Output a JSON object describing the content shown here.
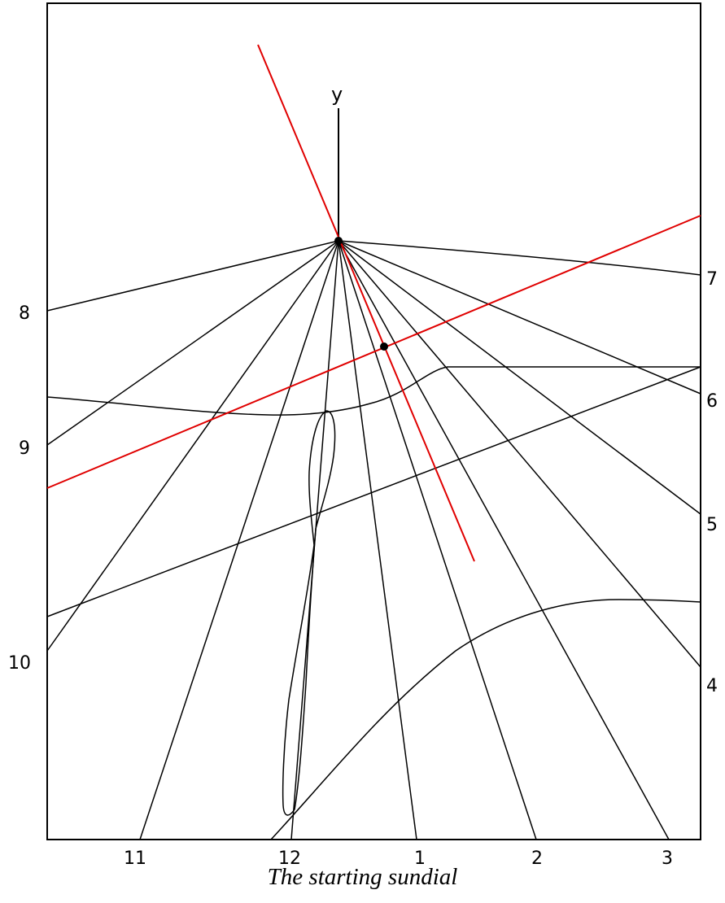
{
  "caption": "The starting sundial",
  "axis_label": "y",
  "hour_labels_left": [
    "8",
    "9",
    "10"
  ],
  "hour_labels_right": [
    "7",
    "6",
    "5",
    "4"
  ],
  "hour_labels_bottom": [
    "11",
    "12",
    "1",
    "2",
    "3"
  ],
  "colors": {
    "lines": "#000000",
    "gnomon": "#e00000",
    "background": "#ffffff"
  }
}
